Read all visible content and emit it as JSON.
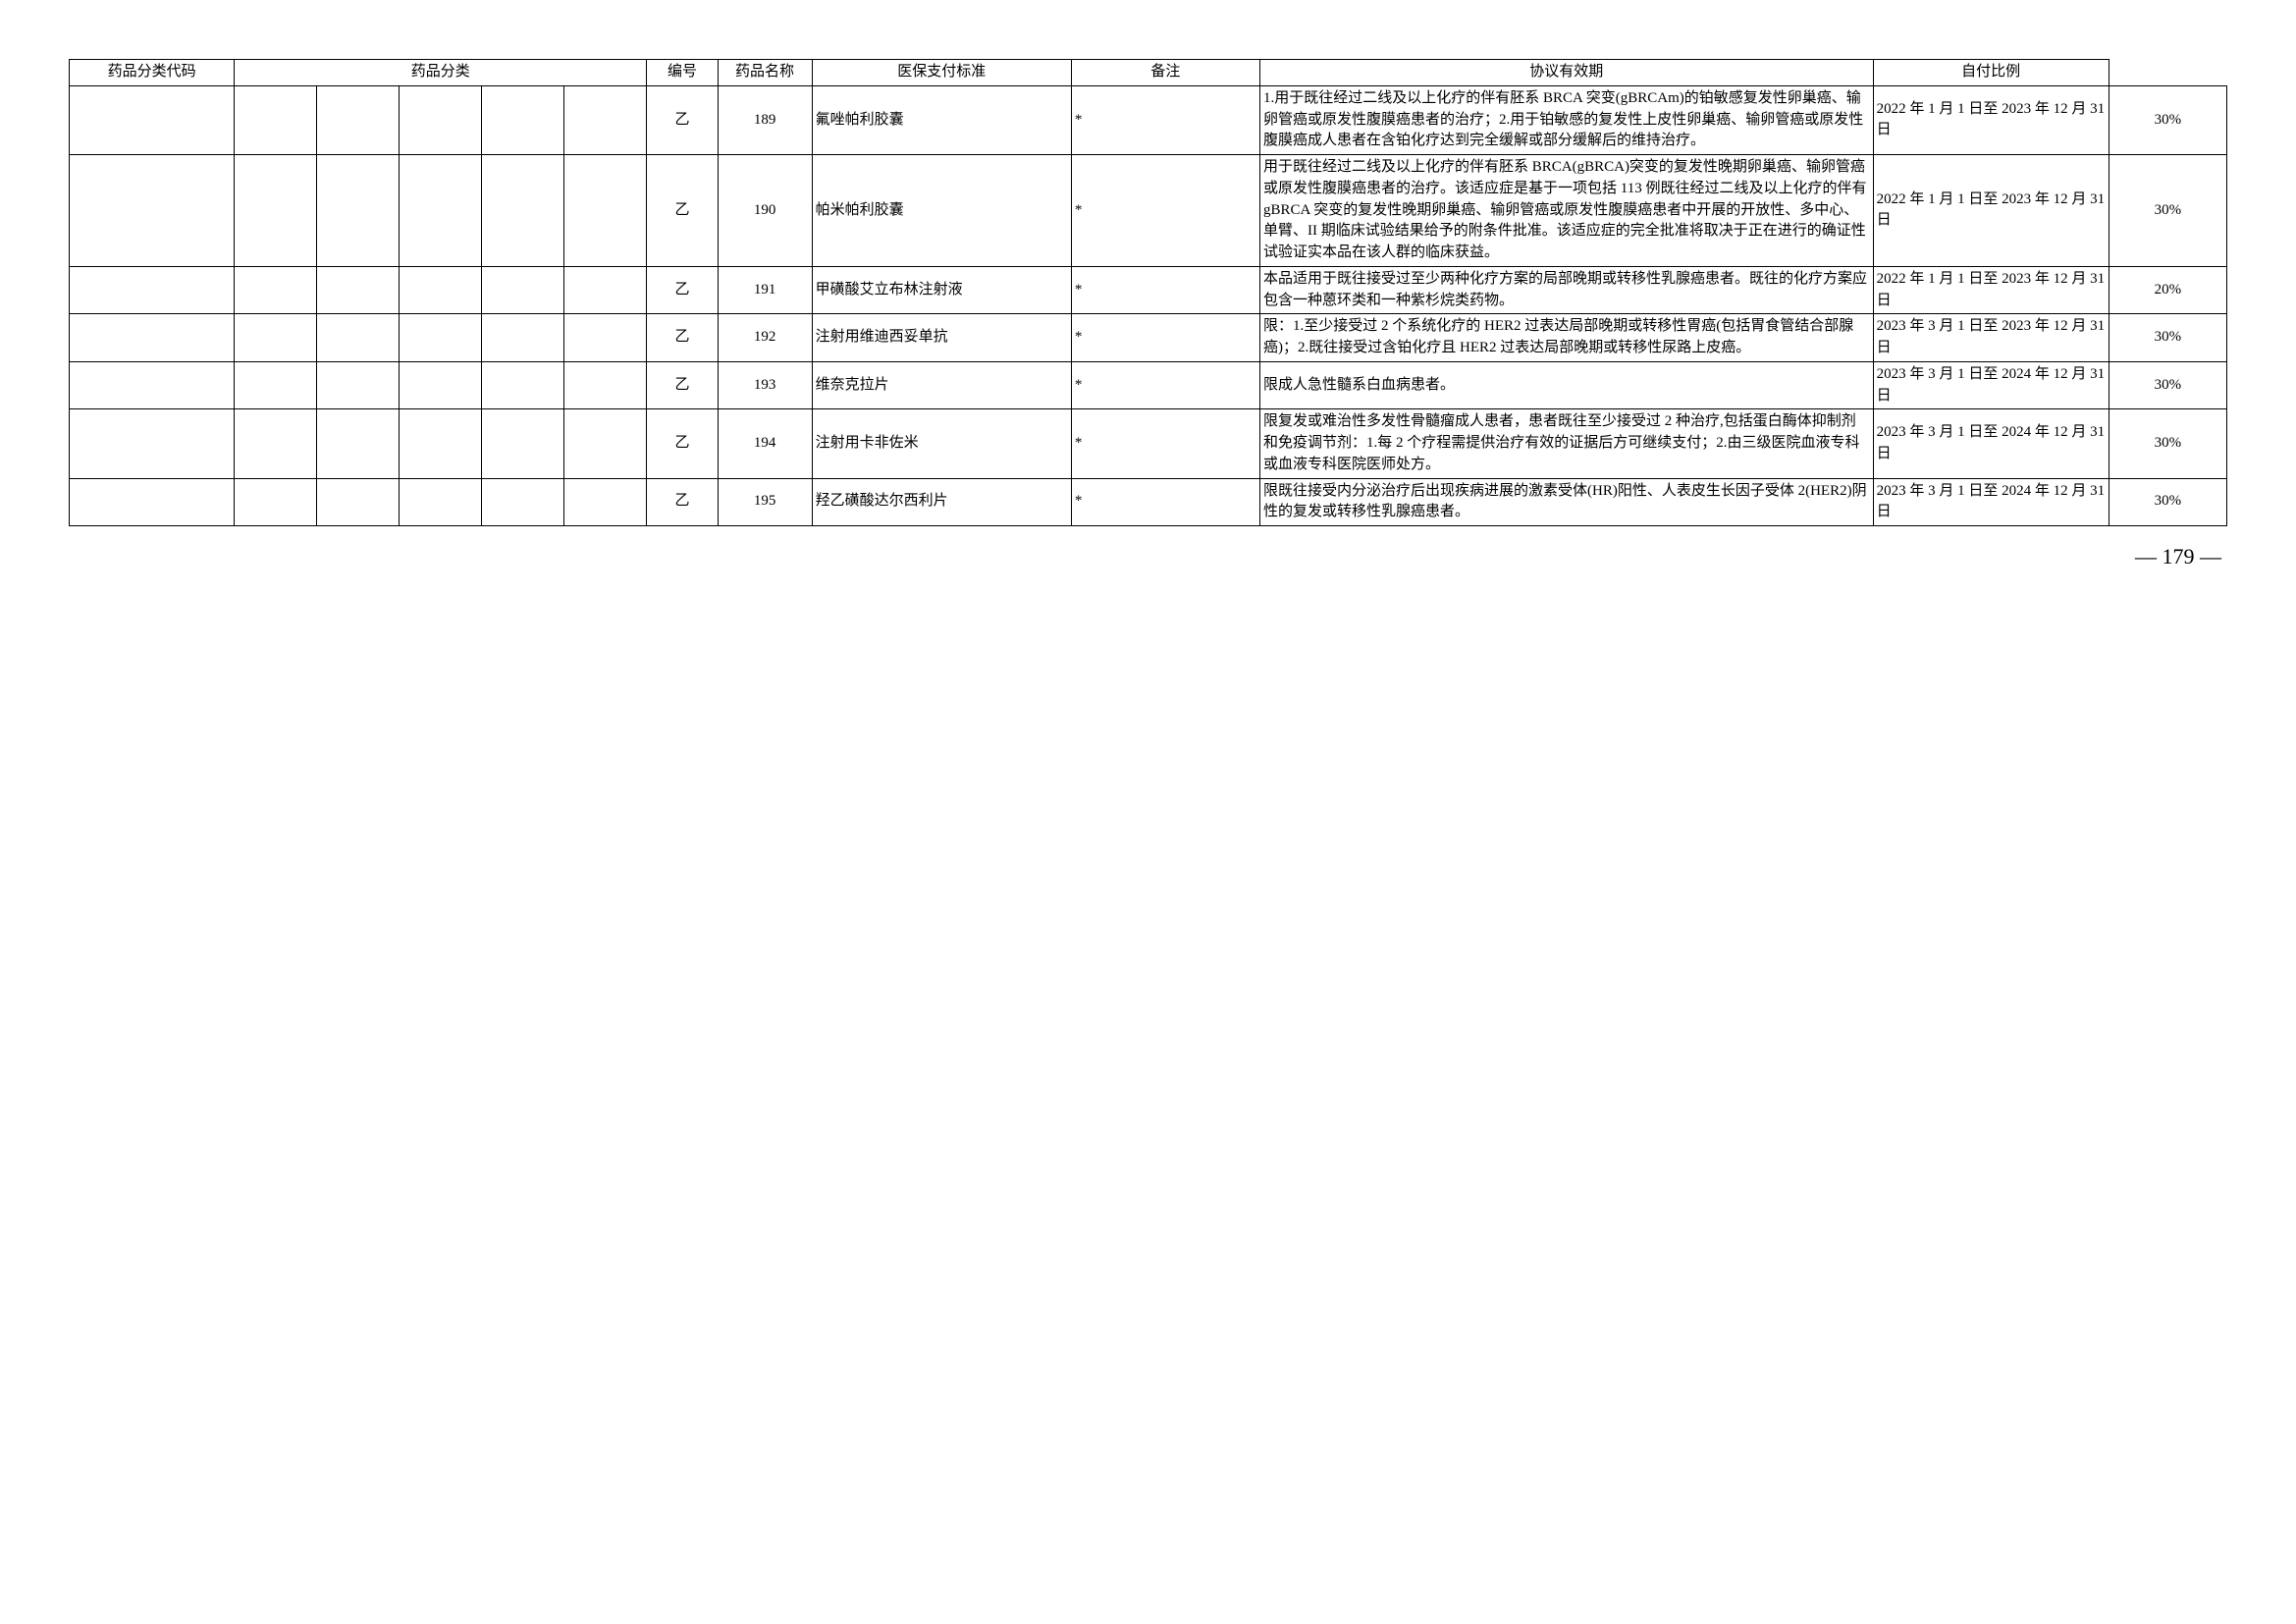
{
  "headers": {
    "code": "药品分类代码",
    "category": "药品分类",
    "num": "编号",
    "name": "药品名称",
    "standard": "医保支付标准",
    "remark": "备注",
    "validity": "协议有效期",
    "ratio": "自付比例"
  },
  "rows": [
    {
      "class": "乙",
      "num": "189",
      "name": "氟唑帕利胶囊",
      "standard": "*",
      "remark": "1.用于既往经过二线及以上化疗的伴有胚系 BRCA 突变(gBRCAm)的铂敏感复发性卵巢癌、输卵管癌或原发性腹膜癌患者的治疗；2.用于铂敏感的复发性上皮性卵巢癌、输卵管癌或原发性腹膜癌成人患者在含铂化疗达到完全缓解或部分缓解后的维持治疗。",
      "validity": "2022 年 1 月 1 日至 2023 年 12 月 31 日",
      "ratio": "30%"
    },
    {
      "class": "乙",
      "num": "190",
      "name": "帕米帕利胶囊",
      "standard": "*",
      "remark": "用于既往经过二线及以上化疗的伴有胚系 BRCA(gBRCA)突变的复发性晚期卵巢癌、输卵管癌或原发性腹膜癌患者的治疗。该适应症是基于一项包括 113 例既往经过二线及以上化疗的伴有 gBRCA 突变的复发性晚期卵巢癌、输卵管癌或原发性腹膜癌患者中开展的开放性、多中心、单臂、II 期临床试验结果给予的附条件批准。该适应症的完全批准将取决于正在进行的确证性试验证实本品在该人群的临床获益。",
      "validity": "2022 年 1 月 1 日至 2023 年 12 月 31 日",
      "ratio": "30%"
    },
    {
      "class": "乙",
      "num": "191",
      "name": "甲磺酸艾立布林注射液",
      "standard": "*",
      "remark": "本品适用于既往接受过至少两种化疗方案的局部晚期或转移性乳腺癌患者。既往的化疗方案应包含一种蒽环类和一种紫杉烷类药物。",
      "validity": "2022 年 1 月 1 日至 2023 年 12 月 31 日",
      "ratio": "20%"
    },
    {
      "class": "乙",
      "num": "192",
      "name": "注射用维迪西妥单抗",
      "standard": "*",
      "remark": "限：1.至少接受过 2 个系统化疗的 HER2 过表达局部晚期或转移性胃癌(包括胃食管结合部腺癌)；2.既往接受过含铂化疗且 HER2 过表达局部晚期或转移性尿路上皮癌。",
      "validity": "2023 年 3 月 1 日至 2023 年 12 月 31 日",
      "ratio": "30%"
    },
    {
      "class": "乙",
      "num": "193",
      "name": "维奈克拉片",
      "standard": "*",
      "remark": "限成人急性髓系白血病患者。",
      "validity": "2023 年 3 月 1 日至 2024 年 12 月 31 日",
      "ratio": "30%"
    },
    {
      "class": "乙",
      "num": "194",
      "name": "注射用卡非佐米",
      "standard": "*",
      "remark": "限复发或难治性多发性骨髓瘤成人患者，患者既往至少接受过 2 种治疗,包括蛋白酶体抑制剂和免疫调节剂：1.每 2 个疗程需提供治疗有效的证据后方可继续支付；2.由三级医院血液专科或血液专科医院医师处方。",
      "validity": "2023 年 3 月 1 日至 2024 年 12 月 31 日",
      "ratio": "30%"
    },
    {
      "class": "乙",
      "num": "195",
      "name": "羟乙磺酸达尔西利片",
      "standard": "*",
      "remark": "限既往接受内分泌治疗后出现疾病进展的激素受体(HR)阳性、人表皮生长因子受体 2(HER2)阴性的复发或转移性乳腺癌患者。",
      "validity": "2023 年 3 月 1 日至 2024 年 12 月 31 日",
      "ratio": "30%"
    }
  ],
  "page_number": "— 179 —"
}
